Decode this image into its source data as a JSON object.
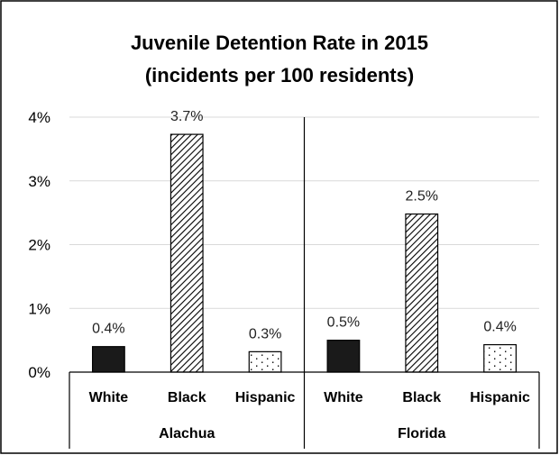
{
  "chart_data": {
    "type": "bar",
    "title_lines": [
      "Juvenile Detention Rate in 2015",
      "(incidents per 100 residents)"
    ],
    "y_tick_labels": [
      "0%",
      "1%",
      "2%",
      "3%",
      "4%"
    ],
    "ylim": [
      0,
      4
    ],
    "grid": true,
    "legend": "none",
    "groups": [
      {
        "name": "Alachua",
        "bars": [
          {
            "category": "White",
            "value": 0.4,
            "label": "0.4%",
            "pattern": "solid"
          },
          {
            "category": "Black",
            "value": 3.73,
            "label": "3.7%",
            "pattern": "diagonal"
          },
          {
            "category": "Hispanic",
            "value": 0.32,
            "label": "0.3%",
            "pattern": "dots"
          }
        ]
      },
      {
        "name": "Florida",
        "bars": [
          {
            "category": "White",
            "value": 0.5,
            "label": "0.5%",
            "pattern": "solid"
          },
          {
            "category": "Black",
            "value": 2.48,
            "label": "2.5%",
            "pattern": "diagonal"
          },
          {
            "category": "Hispanic",
            "value": 0.43,
            "label": "0.4%",
            "pattern": "dots"
          }
        ]
      }
    ]
  },
  "colors": {
    "bar_fill": "#1a1a1a",
    "bar_stroke": "#000000",
    "grid": "#d9d9d9",
    "axis": "#000000",
    "frame": "#000000"
  }
}
